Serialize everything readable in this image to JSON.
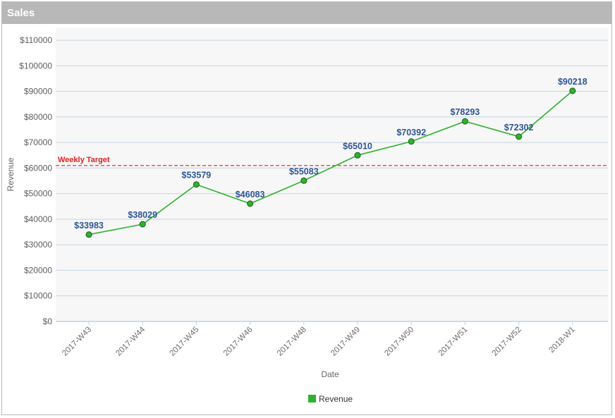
{
  "panel": {
    "title": "Sales"
  },
  "chart_data": {
    "type": "line",
    "xlabel": "Date",
    "ylabel": "Revenue",
    "ylim": [
      0,
      115000
    ],
    "yticks": [
      0,
      10000,
      20000,
      30000,
      40000,
      50000,
      60000,
      70000,
      80000,
      90000,
      100000,
      110000
    ],
    "ytick_labels": [
      "$0",
      "$10000",
      "$20000",
      "$30000",
      "$40000",
      "$50000",
      "$60000",
      "$70000",
      "$80000",
      "$90000",
      "$100000",
      "$110000"
    ],
    "grid": true,
    "legend_position": "bottom-center",
    "categories": [
      "2017-W43",
      "2017-W44",
      "2017-W45",
      "2017-W46",
      "2017-W48",
      "2017-W49",
      "2017-W50",
      "2017-W51",
      "2017-W52",
      "2018-W1"
    ],
    "series": [
      {
        "name": "Revenue",
        "color": "#2db32d",
        "values": [
          33983,
          38029,
          53579,
          46083,
          55083,
          65010,
          70392,
          78293,
          72302,
          90218
        ],
        "labels": [
          "$33983",
          "$38029",
          "$53579",
          "$46083",
          "$55083",
          "$65010",
          "$70392",
          "$78293",
          "$72302",
          "$90218"
        ]
      }
    ],
    "reference_line": {
      "label": "Weekly Target",
      "value": 61000,
      "color": "#e02020",
      "style": "dashed"
    },
    "colors": {
      "plot_background": "#f7f7f7",
      "gridline": "#c5d3e3",
      "data_label": "#2f5597"
    }
  }
}
